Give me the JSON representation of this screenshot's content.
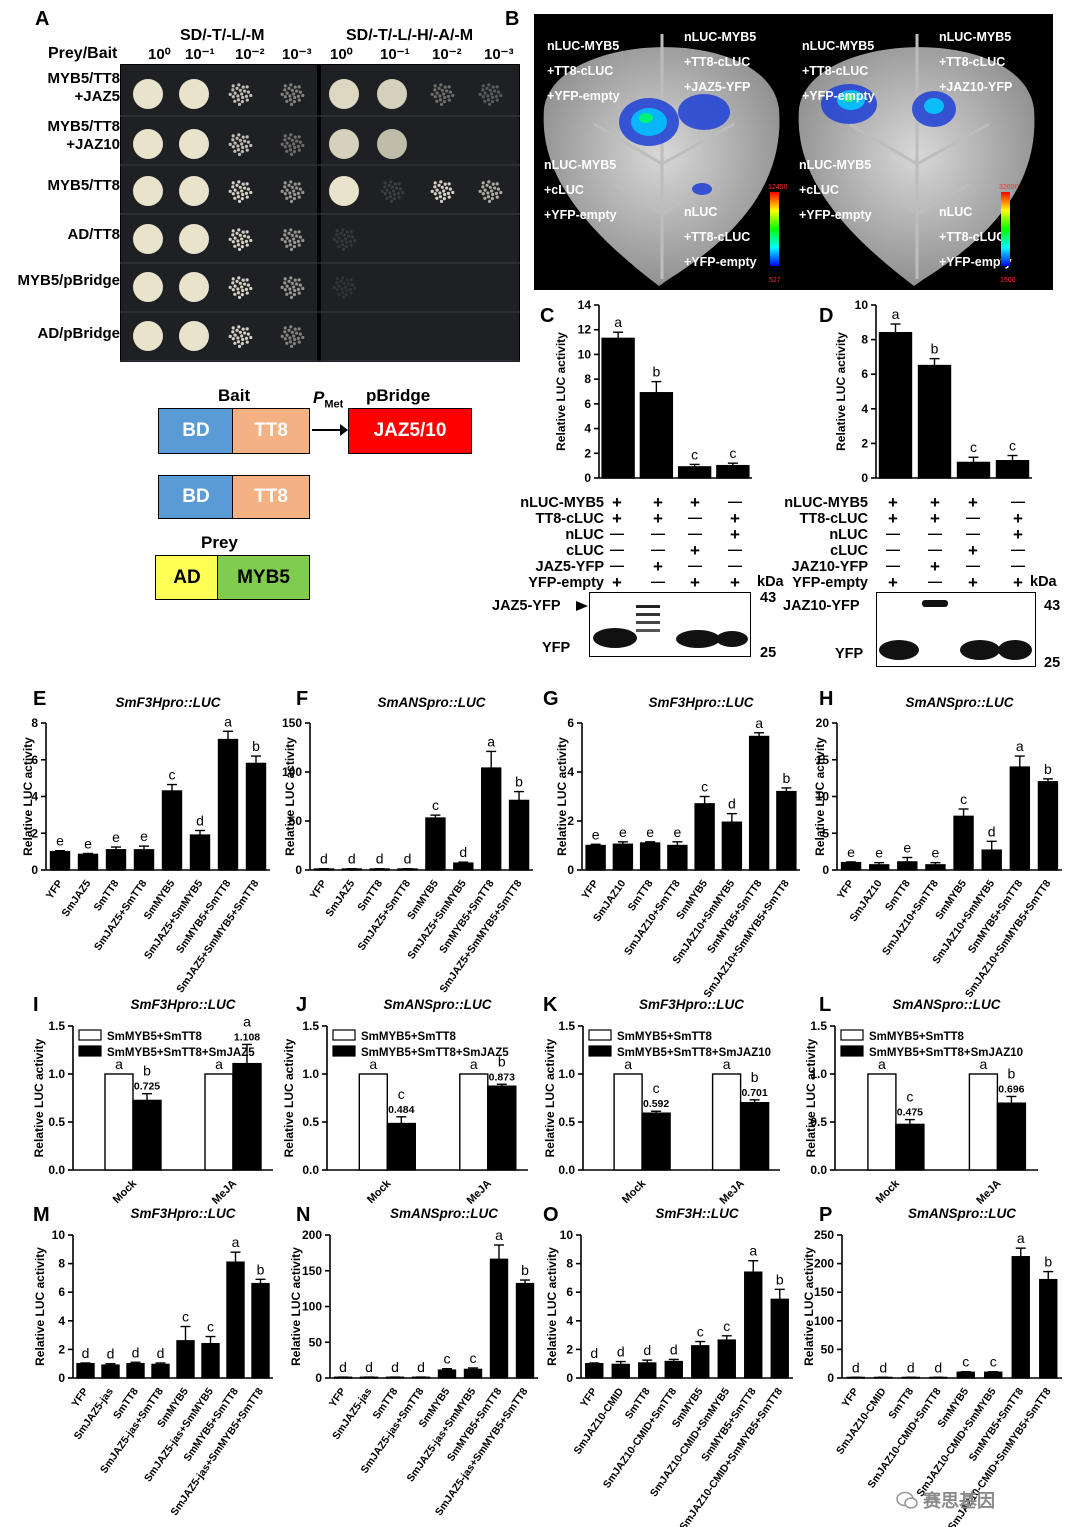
{
  "panels": {
    "A": "A",
    "B": "B",
    "C": "C",
    "D": "D",
    "E": "E",
    "F": "F",
    "G": "G",
    "H": "H",
    "I": "I",
    "J": "J",
    "K": "K",
    "L": "L",
    "M": "M",
    "N": "N",
    "O": "O",
    "P": "P"
  },
  "yeast": {
    "prey_bait": "Prey/Bait",
    "medium_left": "SD/-T/-L/-M",
    "medium_right": "SD/-T/-L/-H/-A/-M",
    "dilutions": [
      "10⁰",
      "10⁻¹",
      "10⁻²",
      "10⁻³"
    ],
    "rows": [
      "MYB5/TT8\n+JAZ5",
      "MYB5/TT8\n+JAZ10",
      "MYB5/TT8",
      "AD/TT8",
      "MYB5/pBridge",
      "AD/pBridge"
    ]
  },
  "construct": {
    "bait_title": "Bait",
    "pmet": "P",
    "pmet_sub": "Met",
    "pbridge": "pBridge",
    "bd": "BD",
    "tt8": "TT8",
    "jaz": "JAZ5/10",
    "prey_title": "Prey",
    "ad": "AD",
    "myb5": "MYB5"
  },
  "leaf": {
    "left": {
      "tl": [
        "nLUC-MYB5",
        "+TT8-cLUC",
        "+YFP-empty"
      ],
      "tr": [
        "nLUC-MYB5",
        "+TT8-cLUC",
        "+JAZ5-YFP"
      ],
      "bl": [
        "nLUC-MYB5",
        "+cLUC",
        "+YFP-empty"
      ],
      "br": [
        "nLUC",
        "+TT8-cLUC",
        "+YFP-empty"
      ],
      "scale_max": "12450",
      "scale_min": "527"
    },
    "right": {
      "tl": [
        "nLUC-MYB5",
        "+TT8-cLUC",
        "+YFP-empty"
      ],
      "tr": [
        "nLUC-MYB5",
        "+TT8-cLUC",
        "+JAZ10-YFP"
      ],
      "bl": [
        "nLUC-MYB5",
        "+cLUC",
        "+YFP-empty"
      ],
      "br": [
        "nLUC",
        "+TT8-cLUC",
        "+YFP-empty"
      ],
      "scale_max": "32000",
      "scale_min": "1500"
    }
  },
  "grid": {
    "C": {
      "rows": [
        "nLUC-MYB5",
        "TT8-cLUC",
        "nLUC",
        "cLUC",
        "JAZ5-YFP",
        "YFP-empty"
      ],
      "signs": [
        [
          "+",
          "+",
          "+",
          "—"
        ],
        [
          "+",
          "+",
          "—",
          "+"
        ],
        [
          "—",
          "—",
          "—",
          "+"
        ],
        [
          "—",
          "—",
          "+",
          "—"
        ],
        [
          "—",
          "+",
          "—",
          "—"
        ],
        [
          "+",
          "—",
          "+",
          "+"
        ]
      ],
      "kda": "kDa",
      "blot_top": "JAZ5-YFP",
      "blot_bottom": "YFP",
      "m43": "43",
      "m25": "25"
    },
    "D": {
      "rows": [
        "nLUC-MYB5",
        "TT8-cLUC",
        "nLUC",
        "cLUC",
        "JAZ10-YFP",
        "YFP-empty"
      ],
      "signs": [
        [
          "+",
          "+",
          "+",
          "—"
        ],
        [
          "+",
          "+",
          "—",
          "+"
        ],
        [
          "—",
          "—",
          "—",
          "+"
        ],
        [
          "—",
          "—",
          "+",
          "—"
        ],
        [
          "—",
          "+",
          "—",
          "—"
        ],
        [
          "+",
          "—",
          "+",
          "+"
        ]
      ],
      "kda": "kDa",
      "blot_top": "JAZ10-YFP",
      "blot_bottom": "YFP",
      "m43": "43",
      "m25": "25"
    }
  },
  "watermark": "赛思基因",
  "chart_data": [
    {
      "id": "C",
      "type": "bar",
      "ylabel": "Relative LUC activity",
      "ylim": [
        0,
        14
      ],
      "ticks": [
        0,
        2,
        4,
        6,
        8,
        10,
        12,
        14
      ],
      "values": [
        11.3,
        6.9,
        0.9,
        1.0
      ],
      "errors": [
        0.5,
        0.9,
        0.2,
        0.2
      ],
      "letters": [
        "a",
        "b",
        "c",
        "c"
      ]
    },
    {
      "id": "D",
      "type": "bar",
      "ylabel": "Relative LUC activity",
      "ylim": [
        0,
        10
      ],
      "ticks": [
        0,
        2,
        4,
        6,
        8,
        10
      ],
      "values": [
        8.4,
        6.5,
        0.9,
        1.0
      ],
      "errors": [
        0.5,
        0.4,
        0.3,
        0.3
      ],
      "letters": [
        "a",
        "b",
        "c",
        "c"
      ]
    },
    {
      "id": "E",
      "type": "bar",
      "title": "SmF3Hpro::LUC",
      "ylabel": "Relative LUC activity",
      "ylim": [
        0,
        8
      ],
      "ticks": [
        0,
        2,
        4,
        6,
        8
      ],
      "categories": [
        "YFP",
        "SmJAZ5",
        "SmTT8",
        "SmJAZ5+SmTT8",
        "SmMYB5",
        "SmJAZ5+SmMYB5",
        "SmMYB5+SmTT8",
        "SmJAZ5+SmMYB5+SmTT8"
      ],
      "values": [
        1.0,
        0.85,
        1.1,
        1.1,
        4.3,
        1.9,
        7.1,
        5.8
      ],
      "errors": [
        0.05,
        0.05,
        0.15,
        0.2,
        0.35,
        0.25,
        0.45,
        0.4
      ],
      "letters": [
        "e",
        "e",
        "e",
        "e",
        "c",
        "d",
        "a",
        "b"
      ]
    },
    {
      "id": "F",
      "type": "bar",
      "title": "SmANSpro::LUC",
      "ylabel": "Relative LUC activity",
      "ylim": [
        0,
        150
      ],
      "ticks": [
        0,
        50,
        100,
        150
      ],
      "categories": [
        "YFP",
        "SmJAZ5",
        "SmTT8",
        "SmJAZ5+SmTT8",
        "SmMYB5",
        "SmJAZ5+SmMYB5",
        "SmMYB5+SmTT8",
        "SmJAZ5+SmMYB5+SmTT8"
      ],
      "values": [
        1,
        1,
        1,
        1,
        53,
        7,
        104,
        71
      ],
      "errors": [
        0.3,
        0.3,
        0.3,
        0.3,
        3,
        1,
        17,
        9
      ],
      "letters": [
        "d",
        "d",
        "d",
        "d",
        "c",
        "d",
        "a",
        "b"
      ]
    },
    {
      "id": "G",
      "type": "bar",
      "title": "SmF3Hpro::LUC",
      "ylabel": "Relative LUC activity",
      "ylim": [
        0,
        6
      ],
      "ticks": [
        0,
        2,
        4,
        6
      ],
      "categories": [
        "YFP",
        "SmJAZ10",
        "SmTT8",
        "SmJAZ10+SmTT8",
        "SmMYB5",
        "SmJAZ10+SmMYB5",
        "SmMYB5+SmTT8",
        "SmJAZ10+SmMYB5+SmTT8"
      ],
      "values": [
        1.0,
        1.05,
        1.1,
        1.0,
        2.7,
        1.95,
        5.45,
        3.2
      ],
      "errors": [
        0.05,
        0.1,
        0.05,
        0.15,
        0.3,
        0.35,
        0.15,
        0.15
      ],
      "letters": [
        "e",
        "e",
        "e",
        "e",
        "c",
        "d",
        "a",
        "b"
      ]
    },
    {
      "id": "H",
      "type": "bar",
      "title": "SmANSpro::LUC",
      "ylabel": "Relative LUC activity",
      "ylim": [
        0,
        20
      ],
      "ticks": [
        0,
        5,
        10,
        15,
        20
      ],
      "categories": [
        "YFP",
        "SmJAZ10",
        "SmTT8",
        "SmJAZ10+SmTT8",
        "SmMYB5",
        "SmJAZ10+SmMYB5",
        "SmMYB5+SmTT8",
        "SmJAZ10+SmMYB5+SmTT8"
      ],
      "values": [
        1.0,
        0.7,
        1.1,
        0.7,
        7.3,
        2.7,
        14.0,
        12.0
      ],
      "errors": [
        0.1,
        0.3,
        0.6,
        0.3,
        1.0,
        1.2,
        1.5,
        0.4
      ],
      "letters": [
        "e",
        "e",
        "e",
        "e",
        "c",
        "d",
        "a",
        "b"
      ]
    },
    {
      "id": "I",
      "type": "bar",
      "title": "SmF3Hpro::LUC",
      "ylabel": "Relative LUC activity",
      "ylim": [
        0,
        1.5
      ],
      "ticks": [
        0,
        0.5,
        1.0,
        1.5
      ],
      "categories": [
        "Mock",
        "MeJA"
      ],
      "legend": [
        "SmMYB5+SmTT8",
        "SmMYB5+SmTT8+SmJAZ5"
      ],
      "series": [
        {
          "name": "SmMYB5+SmTT8",
          "values": [
            1.0,
            1.0
          ],
          "errors": [
            0,
            0
          ],
          "letters": [
            "a",
            "a"
          ],
          "labels": [
            "",
            ""
          ]
        },
        {
          "name": "SmMYB5+SmTT8+SmJAZ5",
          "values": [
            0.725,
            1.108
          ],
          "errors": [
            0.07,
            0.2
          ],
          "letters": [
            "b",
            "a"
          ],
          "labels": [
            "0.725",
            "1.108"
          ]
        }
      ]
    },
    {
      "id": "J",
      "type": "bar",
      "title": "SmANSpro::LUC",
      "ylabel": "Relative LUC activity",
      "ylim": [
        0,
        1.5
      ],
      "ticks": [
        0,
        0.5,
        1.0,
        1.5
      ],
      "categories": [
        "Mock",
        "MeJA"
      ],
      "legend": [
        "SmMYB5+SmTT8",
        "SmMYB5+SmTT8+SmJAZ5"
      ],
      "series": [
        {
          "name": "SmMYB5+SmTT8",
          "values": [
            1.0,
            1.0
          ],
          "errors": [
            0,
            0
          ],
          "letters": [
            "a",
            "a"
          ],
          "labels": [
            "",
            ""
          ]
        },
        {
          "name": "SmMYB5+SmTT8+SmJAZ5",
          "values": [
            0.484,
            0.873
          ],
          "errors": [
            0.07,
            0.02
          ],
          "letters": [
            "c",
            "b"
          ],
          "labels": [
            "0.484",
            "0.873"
          ]
        }
      ]
    },
    {
      "id": "K",
      "type": "bar",
      "title": "SmF3Hpro::LUC",
      "ylabel": "Relative LUC activity",
      "ylim": [
        0,
        1.5
      ],
      "ticks": [
        0,
        0.5,
        1.0,
        1.5
      ],
      "categories": [
        "Mock",
        "MeJA"
      ],
      "legend": [
        "SmMYB5+SmTT8",
        "SmMYB5+SmTT8+SmJAZ10"
      ],
      "series": [
        {
          "name": "SmMYB5+SmTT8",
          "values": [
            1.0,
            1.0
          ],
          "errors": [
            0,
            0
          ],
          "letters": [
            "a",
            "a"
          ],
          "labels": [
            "",
            ""
          ]
        },
        {
          "name": "SmMYB5+SmTT8+SmJAZ10",
          "values": [
            0.592,
            0.701
          ],
          "errors": [
            0.02,
            0.03
          ],
          "letters": [
            "c",
            "b"
          ],
          "labels": [
            "0.592",
            "0.701"
          ]
        }
      ]
    },
    {
      "id": "L",
      "type": "bar",
      "title": "SmANSpro::LUC",
      "ylabel": "Relative LUC activity",
      "ylim": [
        0,
        1.5
      ],
      "ticks": [
        0,
        0.5,
        1.0,
        1.5
      ],
      "categories": [
        "Mock",
        "MeJA"
      ],
      "legend": [
        "SmMYB5+SmTT8",
        "SmMYB5+SmTT8+SmJAZ10"
      ],
      "series": [
        {
          "name": "SmMYB5+SmTT8",
          "values": [
            1.0,
            1.0
          ],
          "errors": [
            0,
            0
          ],
          "letters": [
            "a",
            "a"
          ],
          "labels": [
            "",
            ""
          ]
        },
        {
          "name": "SmMYB5+SmTT8+SmJAZ10",
          "values": [
            0.475,
            0.696
          ],
          "errors": [
            0.05,
            0.07
          ],
          "letters": [
            "c",
            "b"
          ],
          "labels": [
            "0.475",
            "0.696"
          ]
        }
      ]
    },
    {
      "id": "M",
      "type": "bar",
      "title": "SmF3Hpro::LUC",
      "ylabel": "Relative LUC activity",
      "ylim": [
        0,
        10
      ],
      "ticks": [
        0,
        2,
        4,
        6,
        8,
        10
      ],
      "categories": [
        "YFP",
        "SmJAZ5-jas",
        "SmTT8",
        "SmJAZ5-jas+SmTT8",
        "SmMYB5",
        "SmJAZ5-jas+SmMYB5",
        "SmMYB5+SmTT8",
        "SmJAZ5-jas+SmMYB5+SmTT8"
      ],
      "values": [
        1.0,
        0.9,
        1.0,
        0.95,
        2.6,
        2.4,
        8.1,
        6.6
      ],
      "errors": [
        0.05,
        0.1,
        0.1,
        0.1,
        1.0,
        0.5,
        0.7,
        0.3
      ],
      "letters": [
        "d",
        "d",
        "d",
        "d",
        "c",
        "c",
        "a",
        "b"
      ]
    },
    {
      "id": "N",
      "type": "bar",
      "title": "SmANSpro::LUC",
      "ylabel": "Relative LUC activity",
      "ylim": [
        0,
        200
      ],
      "ticks": [
        0,
        50,
        100,
        150,
        200
      ],
      "categories": [
        "YFP",
        "SmJAZ5-jas",
        "SmTT8",
        "SmJAZ5-jas+SmTT8",
        "SmMYB5",
        "SmJAZ5-jas+SmMYB5",
        "SmMYB5+SmTT8",
        "SmJAZ5-jas+SmMYB5+SmTT8"
      ],
      "values": [
        1,
        1,
        1,
        1,
        11,
        12,
        166,
        132
      ],
      "errors": [
        0.3,
        0.3,
        0.3,
        0.3,
        2,
        2,
        20,
        5
      ],
      "letters": [
        "d",
        "d",
        "d",
        "d",
        "c",
        "c",
        "a",
        "b"
      ]
    },
    {
      "id": "O",
      "type": "bar",
      "title": "SmF3H::LUC",
      "ylabel": "Relative LUC activity",
      "ylim": [
        0,
        10
      ],
      "ticks": [
        0,
        2,
        4,
        6,
        8,
        10
      ],
      "categories": [
        "YFP",
        "SmJAZ10-CMID",
        "SmTT8",
        "SmJAZ10-CMID+SmTT8",
        "SmMYB5",
        "SmJAZ10-CMID+SmMYB5",
        "SmMYB5+SmTT8",
        "SmJAZ10-CMID+SmMYB5+SmTT8"
      ],
      "values": [
        1.0,
        0.95,
        1.05,
        1.15,
        2.25,
        2.65,
        7.4,
        5.5
      ],
      "errors": [
        0.05,
        0.2,
        0.2,
        0.15,
        0.3,
        0.3,
        0.8,
        0.7
      ],
      "letters": [
        "d",
        "d",
        "d",
        "d",
        "c",
        "c",
        "a",
        "b"
      ]
    },
    {
      "id": "P",
      "type": "bar",
      "title": "SmANSpro::LUC",
      "ylabel": "Relative LUC activity",
      "ylim": [
        0,
        250
      ],
      "ticks": [
        0,
        50,
        100,
        150,
        200,
        250
      ],
      "categories": [
        "YFP",
        "SmJAZ10-CMID",
        "SmTT8",
        "SmJAZ10-CMID+SmTT8",
        "SmMYB5",
        "SmJAZ10-CMID+SmMYB5",
        "SmMYB5+SmTT8",
        "SmJAZ10-CMID+SmMYB5+SmTT8"
      ],
      "values": [
        1,
        1,
        1,
        1,
        10,
        10,
        212,
        172
      ],
      "errors": [
        0.3,
        0.3,
        0.3,
        0.3,
        1,
        1,
        15,
        14
      ],
      "letters": [
        "d",
        "d",
        "d",
        "d",
        "c",
        "c",
        "a",
        "b"
      ]
    }
  ]
}
